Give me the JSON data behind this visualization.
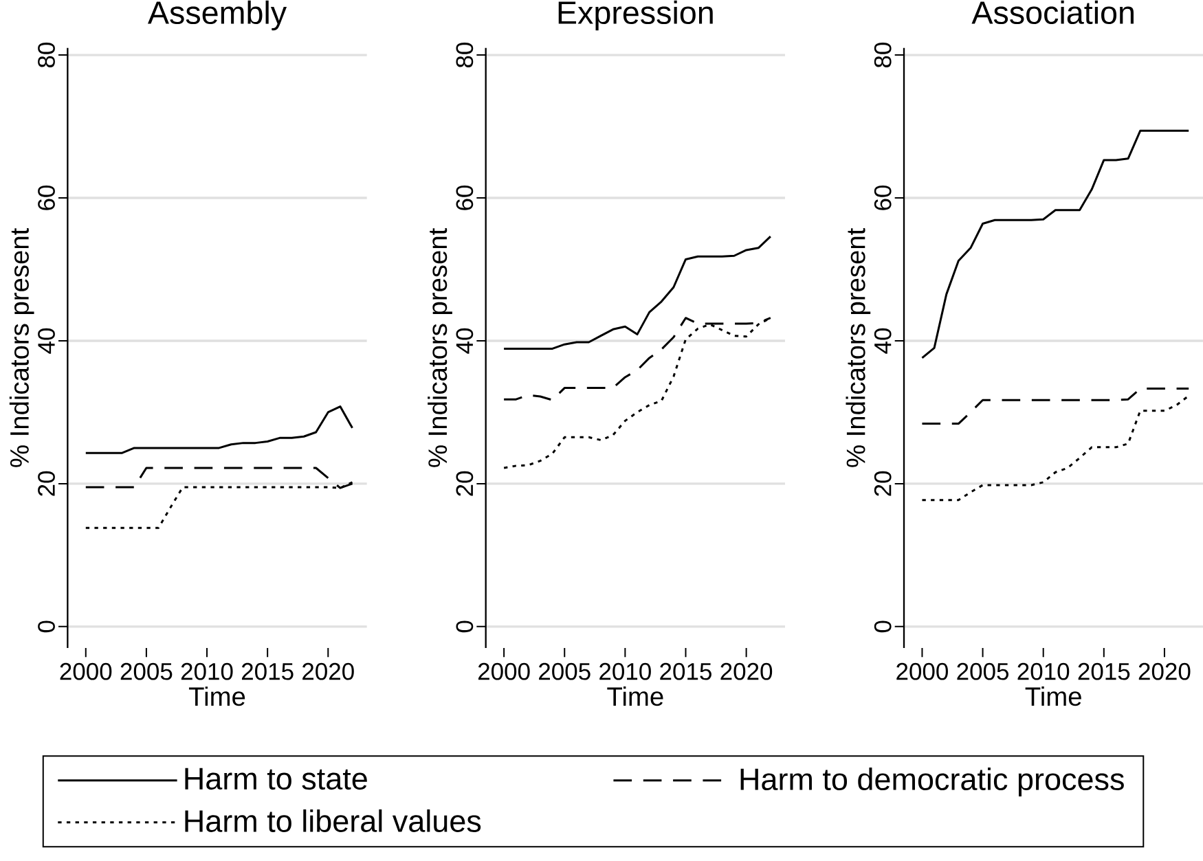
{
  "chart_data": [
    {
      "type": "line",
      "title": "Assembly",
      "xlabel": "Time",
      "ylabel": "% Indicators present",
      "x": [
        2000,
        2001,
        2002,
        2003,
        2004,
        2005,
        2006,
        2007,
        2008,
        2009,
        2010,
        2011,
        2012,
        2013,
        2014,
        2015,
        2016,
        2017,
        2018,
        2019,
        2020,
        2021,
        2022
      ],
      "xlim": [
        1998.5,
        2023.2
      ],
      "ylim": [
        -3,
        81
      ],
      "xticks": [
        2000,
        2005,
        2010,
        2015,
        2020
      ],
      "yticks": [
        0,
        20,
        40,
        60,
        80
      ],
      "grid": "y",
      "legend": "bottom",
      "series": [
        {
          "name": "Harm to state",
          "color": "#000000",
          "line_style": "solid",
          "values": [
            24.3,
            24.3,
            24.3,
            24.3,
            25,
            25,
            25,
            25,
            25,
            25,
            25,
            25,
            25.5,
            25.7,
            25.7,
            25.9,
            26.4,
            26.4,
            26.6,
            27.2,
            30,
            30.8,
            27.8
          ]
        },
        {
          "name": "Harm to democratic process",
          "color": "#000000",
          "line_style": "dashed",
          "values": [
            19.5,
            19.5,
            19.5,
            19.5,
            19.5,
            22.2,
            22.2,
            22.2,
            22.2,
            22.2,
            22.2,
            22.2,
            22.2,
            22.2,
            22.2,
            22.2,
            22.2,
            22.2,
            22.2,
            22.2,
            20.8,
            19.4,
            20
          ]
        },
        {
          "name": "Harm to liberal values",
          "color": "#000000",
          "line_style": "dotted",
          "values": [
            13.8,
            13.8,
            13.8,
            13.8,
            13.8,
            13.8,
            13.8,
            16.7,
            19.5,
            19.5,
            19.5,
            19.5,
            19.5,
            19.5,
            19.5,
            19.5,
            19.5,
            19.5,
            19.5,
            19.5,
            19.5,
            19.4,
            20.2
          ]
        }
      ]
    },
    {
      "type": "line",
      "title": "Expression",
      "xlabel": "Time",
      "ylabel": "% Indicators present",
      "x": [
        2000,
        2001,
        2002,
        2003,
        2004,
        2005,
        2006,
        2007,
        2008,
        2009,
        2010,
        2011,
        2012,
        2013,
        2014,
        2015,
        2016,
        2017,
        2018,
        2019,
        2020,
        2021,
        2022
      ],
      "xlim": [
        1998.5,
        2023.2
      ],
      "ylim": [
        -3,
        81
      ],
      "xticks": [
        2000,
        2005,
        2010,
        2015,
        2020
      ],
      "yticks": [
        0,
        20,
        40,
        60,
        80
      ],
      "grid": "y",
      "series": [
        {
          "color": "#000000",
          "line_style": "solid",
          "values": [
            38.9,
            38.9,
            38.9,
            38.9,
            38.9,
            39.5,
            39.8,
            39.8,
            40.7,
            41.6,
            42,
            40.9,
            44,
            45.5,
            47.5,
            51.4,
            51.8,
            51.8,
            51.8,
            51.9,
            52.7,
            53,
            54.6
          ]
        },
        {
          "color": "#000000",
          "line_style": "dashed",
          "values": [
            31.8,
            31.8,
            32.4,
            32.2,
            31.7,
            33.4,
            33.4,
            33.4,
            33.4,
            33.4,
            34.9,
            35.9,
            37.6,
            38.8,
            40.5,
            43.2,
            42.4,
            42.4,
            42.4,
            42.4,
            42.4,
            42.5,
            43.2
          ]
        },
        {
          "color": "#000000",
          "line_style": "dotted",
          "values": [
            22.2,
            22.5,
            22.6,
            23.2,
            24.2,
            26.5,
            26.5,
            26.5,
            26.1,
            26.8,
            28.8,
            30,
            31,
            31.6,
            35,
            40.2,
            41.7,
            42.3,
            41.5,
            40.7,
            40.6,
            42.3,
            43.2
          ]
        }
      ]
    },
    {
      "type": "line",
      "title": "Association",
      "xlabel": "Time",
      "ylabel": "% Indicators present",
      "x": [
        2000,
        2001,
        2002,
        2003,
        2004,
        2005,
        2006,
        2007,
        2008,
        2009,
        2010,
        2011,
        2012,
        2013,
        2014,
        2015,
        2016,
        2017,
        2018,
        2019,
        2020,
        2021,
        2022
      ],
      "xlim": [
        1998.5,
        2023.2
      ],
      "ylim": [
        -3,
        81
      ],
      "xticks": [
        2000,
        2005,
        2010,
        2015,
        2020
      ],
      "yticks": [
        0,
        20,
        40,
        60,
        80
      ],
      "grid": "y",
      "series": [
        {
          "color": "#000000",
          "line_style": "solid",
          "values": [
            37.6,
            39,
            46.5,
            51.2,
            53,
            56.4,
            56.9,
            56.9,
            56.9,
            56.9,
            57,
            58.3,
            58.3,
            58.3,
            61.2,
            65.3,
            65.3,
            65.5,
            69.4,
            69.4,
            69.4,
            69.4,
            69.4
          ]
        },
        {
          "color": "#000000",
          "line_style": "dashed",
          "values": [
            28.4,
            28.4,
            28.4,
            28.4,
            30,
            31.7,
            31.7,
            31.7,
            31.7,
            31.7,
            31.7,
            31.7,
            31.7,
            31.7,
            31.7,
            31.7,
            31.7,
            31.8,
            33.3,
            33.3,
            33.3,
            33.3,
            33.3
          ]
        },
        {
          "color": "#000000",
          "line_style": "dotted",
          "values": [
            17.7,
            17.7,
            17.7,
            17.7,
            18.8,
            19.8,
            19.8,
            19.8,
            19.8,
            19.8,
            20.2,
            21.6,
            22.2,
            23.6,
            25.1,
            25.1,
            25.1,
            25.6,
            30.2,
            30.2,
            30.2,
            31,
            32.3
          ]
        }
      ]
    }
  ]
}
